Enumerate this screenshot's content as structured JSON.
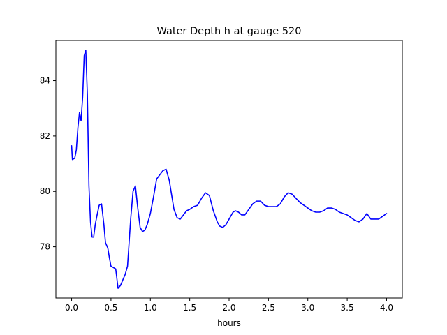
{
  "chart_data": {
    "type": "line",
    "title": "Water Depth h at gauge 520",
    "xlabel": "hours",
    "ylabel": "",
    "xlim": [
      -0.2,
      4.2
    ],
    "ylim": [
      76.15,
      85.45
    ],
    "xticks": [
      0.0,
      0.5,
      1.0,
      1.5,
      2.0,
      2.5,
      3.0,
      3.5,
      4.0
    ],
    "xtick_labels": [
      "0.0",
      "0.5",
      "1.0",
      "1.5",
      "2.0",
      "2.5",
      "3.0",
      "3.5",
      "4.0"
    ],
    "yticks": [
      78,
      80,
      82,
      84
    ],
    "ytick_labels": [
      "78",
      "80",
      "82",
      "84"
    ],
    "grid": false,
    "series": [
      {
        "color": "#0000ff",
        "x": [
          0.0,
          0.01,
          0.04,
          0.06,
          0.08,
          0.1,
          0.12,
          0.14,
          0.16,
          0.18,
          0.2,
          0.22,
          0.24,
          0.26,
          0.28,
          0.3,
          0.32,
          0.35,
          0.38,
          0.41,
          0.43,
          0.46,
          0.48,
          0.5,
          0.53,
          0.56,
          0.59,
          0.62,
          0.65,
          0.68,
          0.71,
          0.75,
          0.78,
          0.81,
          0.84,
          0.87,
          0.9,
          0.93,
          0.96,
          1.0,
          1.04,
          1.08,
          1.12,
          1.16,
          1.2,
          1.24,
          1.28,
          1.3,
          1.34,
          1.38,
          1.42,
          1.46,
          1.5,
          1.55,
          1.6,
          1.65,
          1.7,
          1.75,
          1.8,
          1.85,
          1.88,
          1.92,
          1.96,
          2.0,
          2.05,
          2.08,
          2.12,
          2.16,
          2.2,
          2.25,
          2.3,
          2.35,
          2.4,
          2.45,
          2.5,
          2.55,
          2.6,
          2.65,
          2.7,
          2.75,
          2.8,
          2.85,
          2.9,
          2.95,
          3.0,
          3.05,
          3.1,
          3.15,
          3.2,
          3.25,
          3.3,
          3.35,
          3.4,
          3.45,
          3.5,
          3.55,
          3.6,
          3.65,
          3.7,
          3.75,
          3.8,
          3.85,
          3.9,
          3.95,
          4.0
        ],
        "y": [
          81.65,
          81.15,
          81.2,
          81.5,
          82.3,
          82.85,
          82.55,
          83.4,
          84.9,
          85.1,
          83.5,
          80.2,
          78.9,
          78.35,
          78.35,
          78.8,
          79.1,
          79.5,
          79.55,
          78.8,
          78.15,
          77.95,
          77.6,
          77.3,
          77.25,
          77.2,
          76.5,
          76.6,
          76.8,
          77.0,
          77.3,
          79.0,
          80.0,
          80.2,
          79.4,
          78.7,
          78.55,
          78.6,
          78.8,
          79.2,
          79.8,
          80.45,
          80.6,
          80.75,
          80.8,
          80.4,
          79.7,
          79.35,
          79.05,
          79.0,
          79.15,
          79.3,
          79.35,
          79.45,
          79.5,
          79.75,
          79.95,
          79.85,
          79.3,
          78.9,
          78.75,
          78.7,
          78.8,
          79.0,
          79.25,
          79.3,
          79.25,
          79.15,
          79.15,
          79.35,
          79.55,
          79.65,
          79.65,
          79.5,
          79.45,
          79.45,
          79.45,
          79.55,
          79.8,
          79.95,
          79.9,
          79.75,
          79.6,
          79.5,
          79.4,
          79.3,
          79.25,
          79.25,
          79.3,
          79.4,
          79.4,
          79.35,
          79.25,
          79.2,
          79.15,
          79.05,
          78.95,
          78.9,
          79.0,
          79.2,
          79.0,
          79.0,
          79.0,
          79.1,
          79.2
        ]
      }
    ]
  }
}
